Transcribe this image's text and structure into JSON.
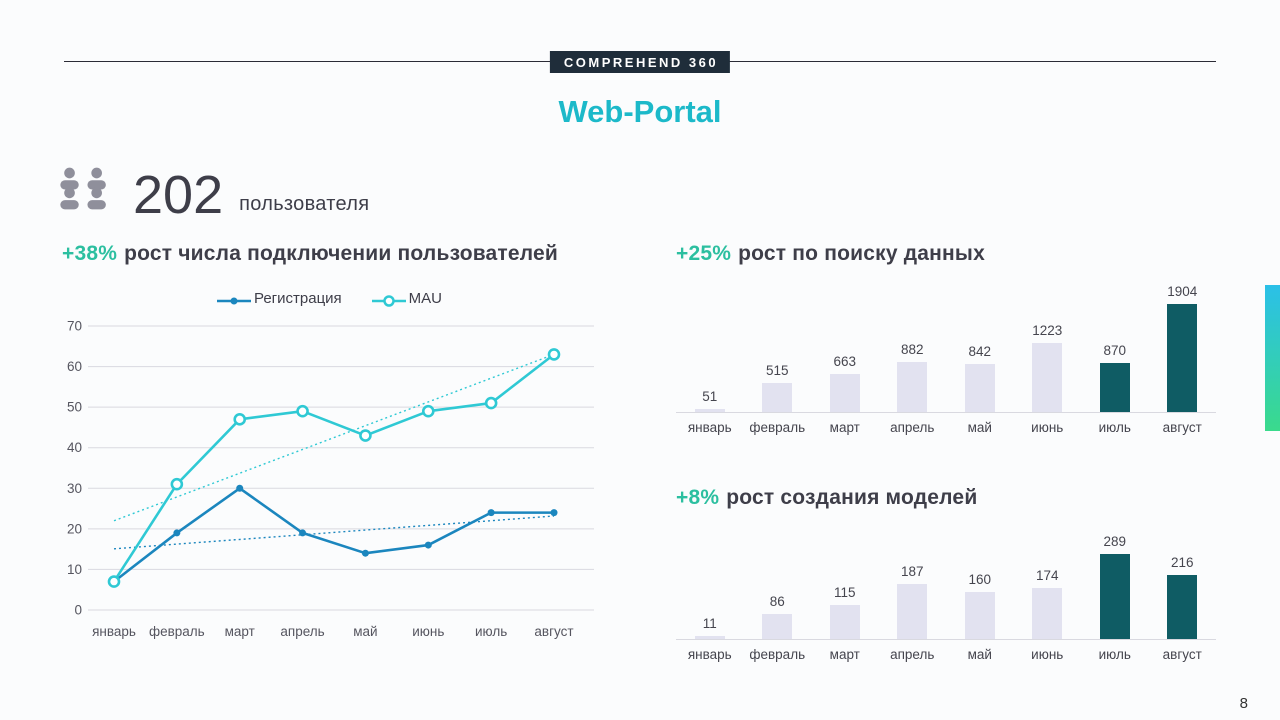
{
  "page": {
    "brand": "COMPREHEND 360",
    "title": "Web-Portal",
    "page_number": "8"
  },
  "colors": {
    "accent": "#1cb9c9",
    "growth_green": "#2cbfa0",
    "dark_text": "#3e3e49",
    "brand_bg": "#1f2d3a",
    "grid": "#d9d9e0",
    "axis_text": "#55555f",
    "edge_gradient_top": "#2bc0e8",
    "edge_gradient_bottom": "#3ada8c"
  },
  "stats": {
    "users_count": "202",
    "users_label": "пользователя"
  },
  "chart_data": [
    {
      "type": "line",
      "title_highlight": "+38%",
      "title_rest": "рост числа подключении пользователей",
      "categories": [
        "январь",
        "февраль",
        "март",
        "апрель",
        "май",
        "июнь",
        "июль",
        "август"
      ],
      "series": [
        {
          "name": "Регистрация",
          "color": "#1b86be",
          "marker": "dot",
          "trend": true,
          "values": [
            7,
            19,
            30,
            19,
            14,
            16,
            24,
            24
          ]
        },
        {
          "name": "MAU",
          "color": "#2fc9d4",
          "marker": "open",
          "trend": true,
          "values": [
            7,
            31,
            47,
            49,
            43,
            49,
            51,
            63
          ]
        }
      ],
      "ylim": [
        0,
        70
      ],
      "yticks": [
        0,
        10,
        20,
        30,
        40,
        50,
        60,
        70
      ],
      "grid": true,
      "legend_position": "top"
    },
    {
      "type": "bar",
      "title_highlight": "+25%",
      "title_rest": "рост по поиску данных",
      "categories": [
        "январь",
        "февраль",
        "март",
        "апрель",
        "май",
        "июнь",
        "июль",
        "август"
      ],
      "values": [
        51,
        515,
        663,
        882,
        842,
        1223,
        870,
        1904
      ],
      "bar_color": "#e2e2f0",
      "highlight_color": "#0f5c64",
      "highlight_from_index": 6
    },
    {
      "type": "bar",
      "title_highlight": "+8%",
      "title_rest": "рост создания моделей",
      "categories": [
        "январь",
        "февраль",
        "март",
        "апрель",
        "май",
        "июнь",
        "июль",
        "август"
      ],
      "values": [
        11,
        86,
        115,
        187,
        160,
        174,
        289,
        216
      ],
      "bar_color": "#e2e2f0",
      "highlight_color": "#0f5c64",
      "highlight_from_index": 6
    }
  ]
}
